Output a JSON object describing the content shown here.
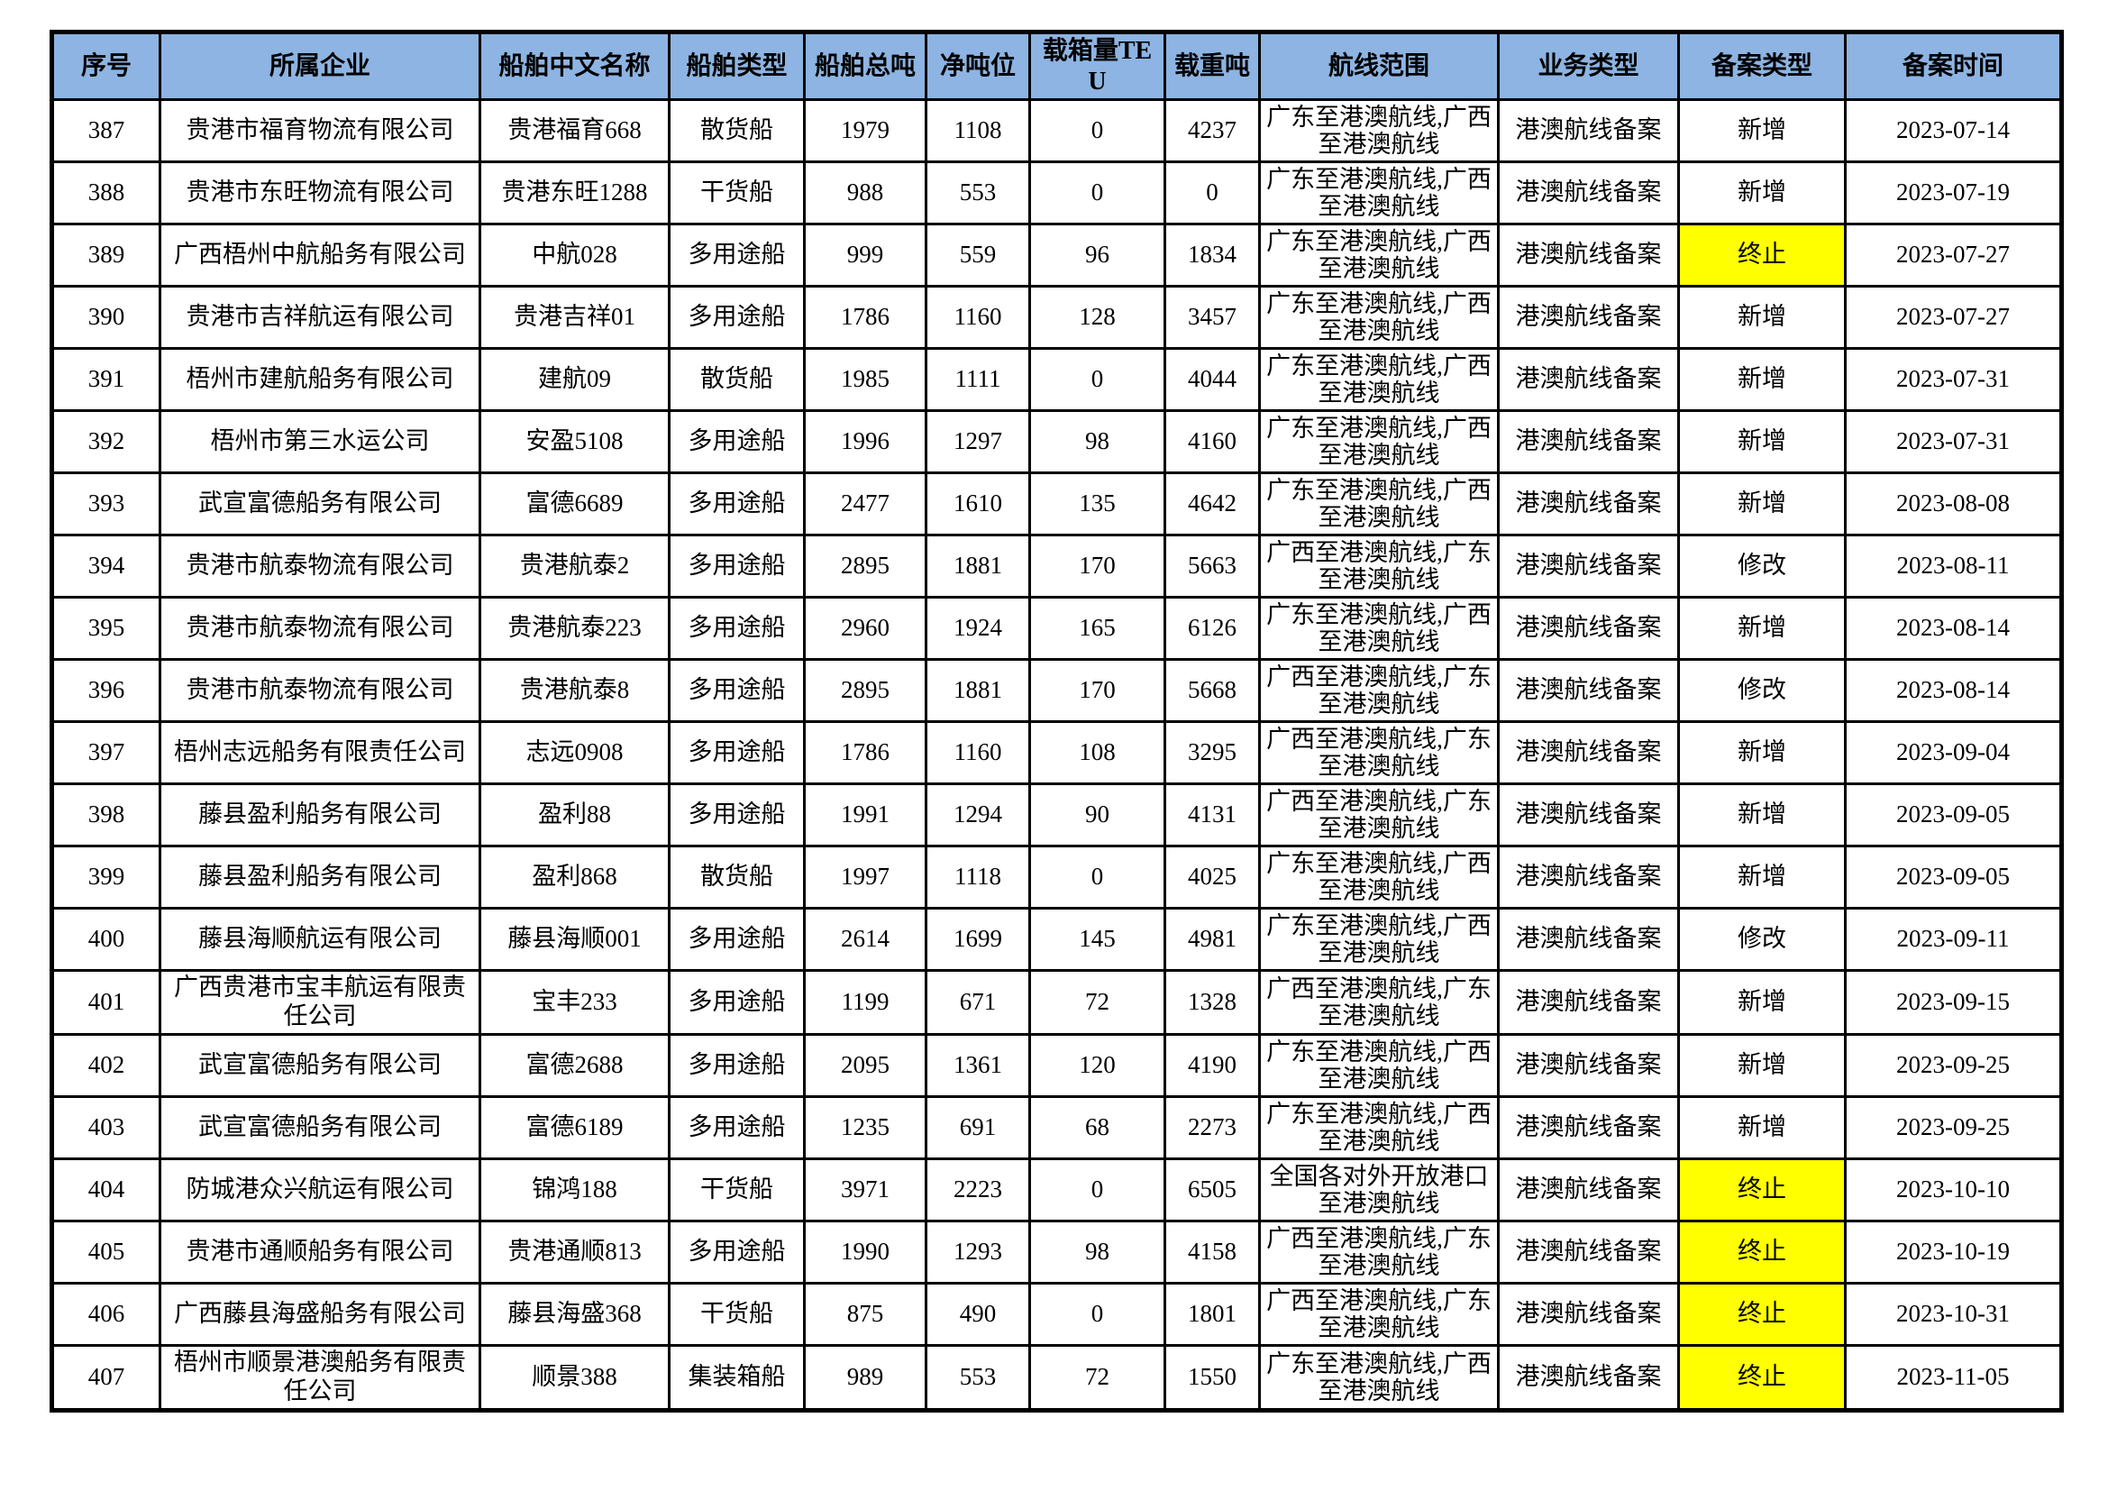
{
  "colors": {
    "header_bg": "#8DB4E2",
    "terminate_highlight": "#FFFF00",
    "grid_border": "#000000"
  },
  "table": {
    "columns": [
      "序号",
      "所属企业",
      "船舶中文名称",
      "船舶类型",
      "船舶总吨",
      "净吨位",
      "载箱量TEU",
      "载重吨",
      "航线范围",
      "业务类型",
      "备案类型",
      "备案时间"
    ],
    "rows": [
      {
        "seq": "387",
        "company": "贵港市福育物流有限公司",
        "ship_name": "贵港福育668",
        "ship_type": "散货船",
        "gross_tonnage": "1979",
        "net_tonnage": "1108",
        "teu": "0",
        "deadweight": "4237",
        "route": "广东至港澳航线,广西至港澳航线",
        "business_type": "港澳航线备案",
        "filing_type": "新增",
        "filing_type_highlighted": false,
        "filing_date": "2023-07-14"
      },
      {
        "seq": "388",
        "company": "贵港市东旺物流有限公司",
        "ship_name": "贵港东旺1288",
        "ship_type": "干货船",
        "gross_tonnage": "988",
        "net_tonnage": "553",
        "teu": "0",
        "deadweight": "0",
        "route": "广东至港澳航线,广西至港澳航线",
        "business_type": "港澳航线备案",
        "filing_type": "新增",
        "filing_type_highlighted": false,
        "filing_date": "2023-07-19"
      },
      {
        "seq": "389",
        "company": "广西梧州中航船务有限公司",
        "ship_name": "中航028",
        "ship_type": "多用途船",
        "gross_tonnage": "999",
        "net_tonnage": "559",
        "teu": "96",
        "deadweight": "1834",
        "route": "广东至港澳航线,广西至港澳航线",
        "business_type": "港澳航线备案",
        "filing_type": "终止",
        "filing_type_highlighted": true,
        "filing_date": "2023-07-27"
      },
      {
        "seq": "390",
        "company": "贵港市吉祥航运有限公司",
        "ship_name": "贵港吉祥01",
        "ship_type": "多用途船",
        "gross_tonnage": "1786",
        "net_tonnage": "1160",
        "teu": "128",
        "deadweight": "3457",
        "route": "广东至港澳航线,广西至港澳航线",
        "business_type": "港澳航线备案",
        "filing_type": "新增",
        "filing_type_highlighted": false,
        "filing_date": "2023-07-27"
      },
      {
        "seq": "391",
        "company": "梧州市建航船务有限公司",
        "ship_name": "建航09",
        "ship_type": "散货船",
        "gross_tonnage": "1985",
        "net_tonnage": "1111",
        "teu": "0",
        "deadweight": "4044",
        "route": "广东至港澳航线,广西至港澳航线",
        "business_type": "港澳航线备案",
        "filing_type": "新增",
        "filing_type_highlighted": false,
        "filing_date": "2023-07-31"
      },
      {
        "seq": "392",
        "company": "梧州市第三水运公司",
        "ship_name": "安盈5108",
        "ship_type": "多用途船",
        "gross_tonnage": "1996",
        "net_tonnage": "1297",
        "teu": "98",
        "deadweight": "4160",
        "route": "广东至港澳航线,广西至港澳航线",
        "business_type": "港澳航线备案",
        "filing_type": "新增",
        "filing_type_highlighted": false,
        "filing_date": "2023-07-31"
      },
      {
        "seq": "393",
        "company": "武宣富德船务有限公司",
        "ship_name": "富德6689",
        "ship_type": "多用途船",
        "gross_tonnage": "2477",
        "net_tonnage": "1610",
        "teu": "135",
        "deadweight": "4642",
        "route": "广东至港澳航线,广西至港澳航线",
        "business_type": "港澳航线备案",
        "filing_type": "新增",
        "filing_type_highlighted": false,
        "filing_date": "2023-08-08"
      },
      {
        "seq": "394",
        "company": "贵港市航泰物流有限公司",
        "ship_name": "贵港航泰2",
        "ship_type": "多用途船",
        "gross_tonnage": "2895",
        "net_tonnage": "1881",
        "teu": "170",
        "deadweight": "5663",
        "route": "广西至港澳航线,广东至港澳航线",
        "business_type": "港澳航线备案",
        "filing_type": "修改",
        "filing_type_highlighted": false,
        "filing_date": "2023-08-11"
      },
      {
        "seq": "395",
        "company": "贵港市航泰物流有限公司",
        "ship_name": "贵港航泰223",
        "ship_type": "多用途船",
        "gross_tonnage": "2960",
        "net_tonnage": "1924",
        "teu": "165",
        "deadweight": "6126",
        "route": "广东至港澳航线,广西至港澳航线",
        "business_type": "港澳航线备案",
        "filing_type": "新增",
        "filing_type_highlighted": false,
        "filing_date": "2023-08-14"
      },
      {
        "seq": "396",
        "company": "贵港市航泰物流有限公司",
        "ship_name": "贵港航泰8",
        "ship_type": "多用途船",
        "gross_tonnage": "2895",
        "net_tonnage": "1881",
        "teu": "170",
        "deadweight": "5668",
        "route": "广西至港澳航线,广东至港澳航线",
        "business_type": "港澳航线备案",
        "filing_type": "修改",
        "filing_type_highlighted": false,
        "filing_date": "2023-08-14"
      },
      {
        "seq": "397",
        "company": "梧州志远船务有限责任公司",
        "ship_name": "志远0908",
        "ship_type": "多用途船",
        "gross_tonnage": "1786",
        "net_tonnage": "1160",
        "teu": "108",
        "deadweight": "3295",
        "route": "广西至港澳航线,广东至港澳航线",
        "business_type": "港澳航线备案",
        "filing_type": "新增",
        "filing_type_highlighted": false,
        "filing_date": "2023-09-04"
      },
      {
        "seq": "398",
        "company": "藤县盈利船务有限公司",
        "ship_name": "盈利88",
        "ship_type": "多用途船",
        "gross_tonnage": "1991",
        "net_tonnage": "1294",
        "teu": "90",
        "deadweight": "4131",
        "route": "广西至港澳航线,广东至港澳航线",
        "business_type": "港澳航线备案",
        "filing_type": "新增",
        "filing_type_highlighted": false,
        "filing_date": "2023-09-05"
      },
      {
        "seq": "399",
        "company": "藤县盈利船务有限公司",
        "ship_name": "盈利868",
        "ship_type": "散货船",
        "gross_tonnage": "1997",
        "net_tonnage": "1118",
        "teu": "0",
        "deadweight": "4025",
        "route": "广东至港澳航线,广西至港澳航线",
        "business_type": "港澳航线备案",
        "filing_type": "新增",
        "filing_type_highlighted": false,
        "filing_date": "2023-09-05"
      },
      {
        "seq": "400",
        "company": "藤县海顺航运有限公司",
        "ship_name": "藤县海顺001",
        "ship_type": "多用途船",
        "gross_tonnage": "2614",
        "net_tonnage": "1699",
        "teu": "145",
        "deadweight": "4981",
        "route": "广东至港澳航线,广西至港澳航线",
        "business_type": "港澳航线备案",
        "filing_type": "修改",
        "filing_type_highlighted": false,
        "filing_date": "2023-09-11"
      },
      {
        "seq": "401",
        "company": "广西贵港市宝丰航运有限责任公司",
        "ship_name": "宝丰233",
        "ship_type": "多用途船",
        "gross_tonnage": "1199",
        "net_tonnage": "671",
        "teu": "72",
        "deadweight": "1328",
        "route": "广西至港澳航线,广东至港澳航线",
        "business_type": "港澳航线备案",
        "filing_type": "新增",
        "filing_type_highlighted": false,
        "filing_date": "2023-09-15"
      },
      {
        "seq": "402",
        "company": "武宣富德船务有限公司",
        "ship_name": "富德2688",
        "ship_type": "多用途船",
        "gross_tonnage": "2095",
        "net_tonnage": "1361",
        "teu": "120",
        "deadweight": "4190",
        "route": "广东至港澳航线,广西至港澳航线",
        "business_type": "港澳航线备案",
        "filing_type": "新增",
        "filing_type_highlighted": false,
        "filing_date": "2023-09-25"
      },
      {
        "seq": "403",
        "company": "武宣富德船务有限公司",
        "ship_name": "富德6189",
        "ship_type": "多用途船",
        "gross_tonnage": "1235",
        "net_tonnage": "691",
        "teu": "68",
        "deadweight": "2273",
        "route": "广东至港澳航线,广西至港澳航线",
        "business_type": "港澳航线备案",
        "filing_type": "新增",
        "filing_type_highlighted": false,
        "filing_date": "2023-09-25"
      },
      {
        "seq": "404",
        "company": "防城港众兴航运有限公司",
        "ship_name": "锦鸿188",
        "ship_type": "干货船",
        "gross_tonnage": "3971",
        "net_tonnage": "2223",
        "teu": "0",
        "deadweight": "6505",
        "route": "全国各对外开放港口至港澳航线",
        "business_type": "港澳航线备案",
        "filing_type": "终止",
        "filing_type_highlighted": true,
        "filing_date": "2023-10-10"
      },
      {
        "seq": "405",
        "company": "贵港市通顺船务有限公司",
        "ship_name": "贵港通顺813",
        "ship_type": "多用途船",
        "gross_tonnage": "1990",
        "net_tonnage": "1293",
        "teu": "98",
        "deadweight": "4158",
        "route": "广西至港澳航线,广东至港澳航线",
        "business_type": "港澳航线备案",
        "filing_type": "终止",
        "filing_type_highlighted": true,
        "filing_date": "2023-10-19"
      },
      {
        "seq": "406",
        "company": "广西藤县海盛船务有限公司",
        "ship_name": "藤县海盛368",
        "ship_type": "干货船",
        "gross_tonnage": "875",
        "net_tonnage": "490",
        "teu": "0",
        "deadweight": "1801",
        "route": "广西至港澳航线,广东至港澳航线",
        "business_type": "港澳航线备案",
        "filing_type": "终止",
        "filing_type_highlighted": true,
        "filing_date": "2023-10-31"
      },
      {
        "seq": "407",
        "company": "梧州市顺景港澳船务有限责任公司",
        "ship_name": "顺景388",
        "ship_type": "集装箱船",
        "gross_tonnage": "989",
        "net_tonnage": "553",
        "teu": "72",
        "deadweight": "1550",
        "route": "广东至港澳航线,广西至港澳航线",
        "business_type": "港澳航线备案",
        "filing_type": "终止",
        "filing_type_highlighted": true,
        "filing_date": "2023-11-05"
      }
    ]
  }
}
